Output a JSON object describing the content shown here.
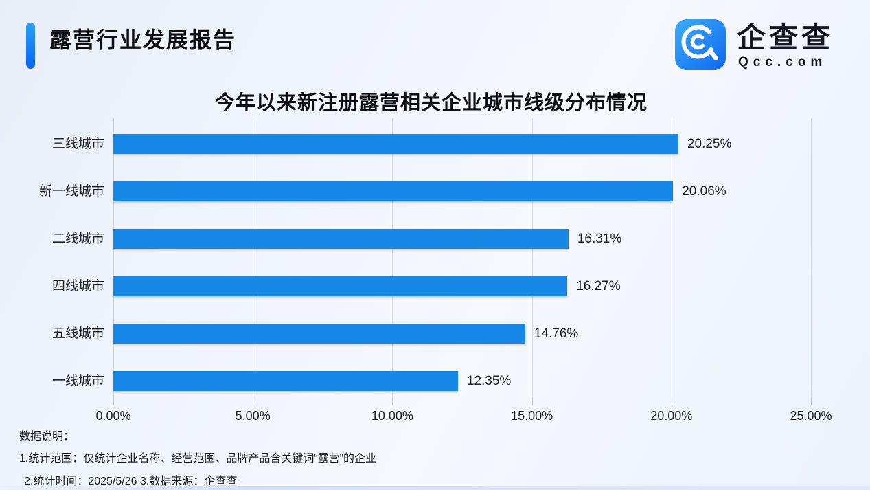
{
  "header": {
    "title": "露营行业发展报告",
    "logo": {
      "brand_cn": "企查查",
      "brand_en": "Qcc.com"
    }
  },
  "chart_data": {
    "type": "bar",
    "orientation": "horizontal",
    "title": "今年以来新注册露营相关企业城市线级分布情况",
    "categories": [
      "三线城市",
      "新一线城市",
      "二线城市",
      "四线城市",
      "五线城市",
      "一线城市"
    ],
    "values": [
      20.25,
      20.06,
      16.31,
      16.27,
      14.76,
      12.35
    ],
    "value_labels": [
      "20.25%",
      "20.06%",
      "16.31%",
      "16.27%",
      "14.76%",
      "12.35%"
    ],
    "x_ticks": [
      "0.00%",
      "5.00%",
      "10.00%",
      "15.00%",
      "20.00%",
      "25.00%"
    ],
    "x_tick_values": [
      0,
      5,
      10,
      15,
      20,
      25
    ],
    "xlim": [
      0,
      25
    ],
    "bar_color": "#1787e8",
    "grid": "vertical",
    "legend": "none"
  },
  "notes": {
    "heading": "数据说明：",
    "line1": "1.统计范围：仅统计企业名称、经营范围、品牌产品含关键词“露营”的企业",
    "line2": "2.统计时间：2025/5/26   3.数据来源：企查查"
  },
  "colors": {
    "accent_gradient_top": "#2ba0f6",
    "accent_gradient_bottom": "#0a63f3",
    "bar_blue": "#1787e8",
    "logo_gradient_light": "#3dadf8",
    "logo_gradient_dark": "#0f66f0"
  }
}
